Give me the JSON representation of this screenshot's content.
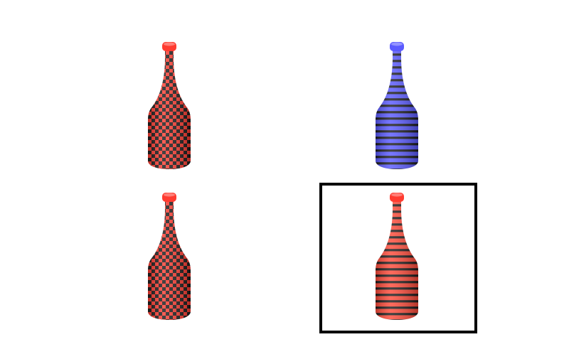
{
  "grid": {
    "items": [
      {
        "pattern": "checkerboard",
        "body_color": "#ff3b30",
        "pattern_color": "#1a1a1a",
        "cap_color": "#ff3b30",
        "selected": false
      },
      {
        "pattern": "stripes",
        "body_color": "#5a5aff",
        "pattern_color": "#1a1a1a",
        "cap_color": "#5a5aff",
        "selected": false
      },
      {
        "pattern": "checkerboard",
        "body_color": "#ff3b30",
        "pattern_color": "#1a1a1a",
        "cap_color": "#ff3b30",
        "selected": false
      },
      {
        "pattern": "stripes",
        "body_color": "#ff4b3a",
        "pattern_color": "#1a1a1a",
        "cap_color": "#ff3b30",
        "selected": true
      }
    ]
  },
  "colors": {
    "selection_border": "#000000",
    "background": "#ffffff"
  },
  "icons": {
    "item": "bottle-icon"
  }
}
